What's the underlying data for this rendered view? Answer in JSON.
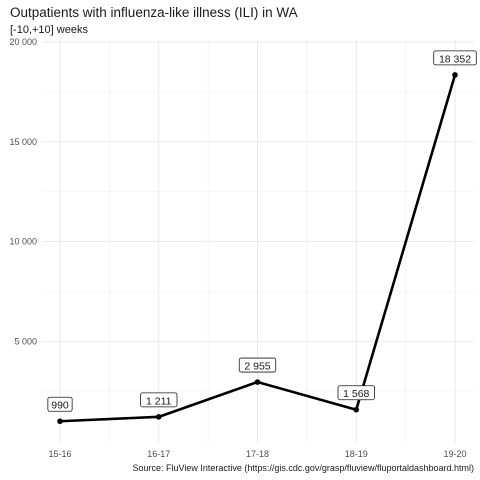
{
  "chart_data": {
    "type": "line",
    "title": "Outpatients with influenza-like illness (ILI) in WA",
    "subtitle": "[-10,+10] weeks",
    "caption": "Source: FluView Interactive (https://gis.cdc.gov/grasp/fluview/fluportaldashboard.html)",
    "categories": [
      "15-16",
      "16-17",
      "17-18",
      "18-19",
      "19-20"
    ],
    "values": [
      990,
      1211,
      2955,
      1568,
      18352
    ],
    "value_labels": [
      "990",
      "1 211",
      "2 955",
      "1 568",
      "18 352"
    ],
    "y_ticks": [
      5000,
      10000,
      15000,
      20000
    ],
    "y_tick_labels": [
      "5 000",
      "10 000",
      "15 000",
      "20 000"
    ],
    "ylim": [
      0,
      20000
    ],
    "grid": true,
    "line_color": "#000000"
  }
}
